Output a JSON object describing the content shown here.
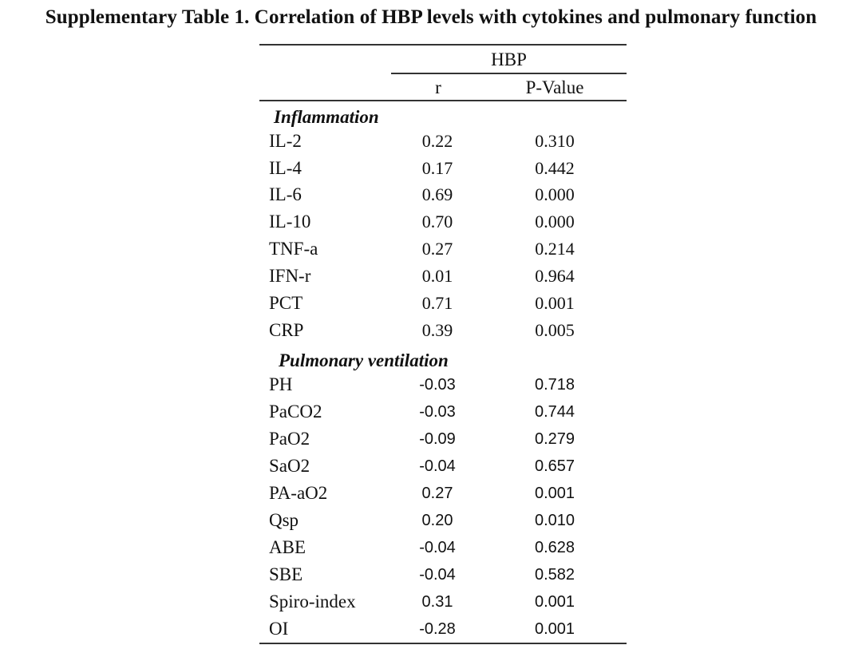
{
  "title": "Supplementary Table 1. Correlation of HBP levels with cytokines and pulmonary function",
  "header": {
    "group": "HBP",
    "col_r": "r",
    "col_p": "P-Value"
  },
  "sections": [
    {
      "name": "Inflammation",
      "rows": [
        {
          "label": "IL-2",
          "r": "0.22",
          "p": "0.310"
        },
        {
          "label": "IL-4",
          "r": "0.17",
          "p": "0.442"
        },
        {
          "label": "IL-6",
          "r": "0.69",
          "p": "0.000"
        },
        {
          "label": "IL-10",
          "r": "0.70",
          "p": "0.000"
        },
        {
          "label": "TNF-a",
          "r": "0.27",
          "p": "0.214"
        },
        {
          "label": "IFN-r",
          "r": "0.01",
          "p": "0.964"
        },
        {
          "label": "PCT",
          "r": "0.71",
          "p": "0.001"
        },
        {
          "label": "CRP",
          "r": "0.39",
          "p": "0.005"
        }
      ]
    },
    {
      "name": "Pulmonary ventilation",
      "rows": [
        {
          "label": "PH",
          "r": "-0.03",
          "p": "0.718"
        },
        {
          "label": "PaCO2",
          "r": "-0.03",
          "p": "0.744"
        },
        {
          "label": "PaO2",
          "r": "-0.09",
          "p": "0.279"
        },
        {
          "label": "SaO2",
          "r": "-0.04",
          "p": "0.657"
        },
        {
          "label": "PA-aO2",
          "r": "0.27",
          "p": "0.001"
        },
        {
          "label": "Qsp",
          "r": "0.20",
          "p": "0.010"
        },
        {
          "label": "ABE",
          "r": "-0.04",
          "p": "0.628"
        },
        {
          "label": "SBE",
          "r": "-0.04",
          "p": "0.582"
        },
        {
          "label": "Spiro-index",
          "r": "0.31",
          "p": "0.001"
        },
        {
          "label": "OI",
          "r": "-0.28",
          "p": "0.001"
        }
      ]
    }
  ]
}
